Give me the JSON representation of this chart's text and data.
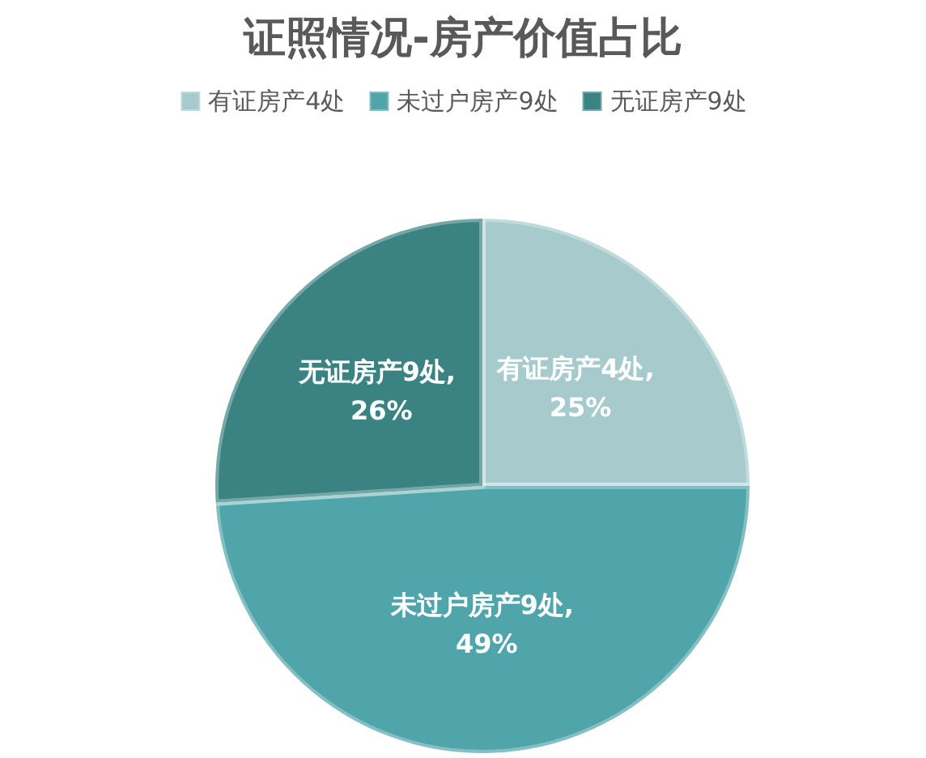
{
  "chart_data": {
    "type": "pie",
    "title": "证照情况-房产价值占比",
    "categories": [
      "有证房产4处",
      "未过户房产9处",
      "无证房产9处"
    ],
    "values": [
      25,
      49,
      26
    ],
    "colors": [
      "#a7cbcd",
      "#4fa5aa",
      "#3b8282"
    ],
    "value_labels": [
      "有证房产4处, 25%",
      "未过户房产9处, 49%",
      "无证房产9处, 26%"
    ],
    "legend": "top"
  }
}
